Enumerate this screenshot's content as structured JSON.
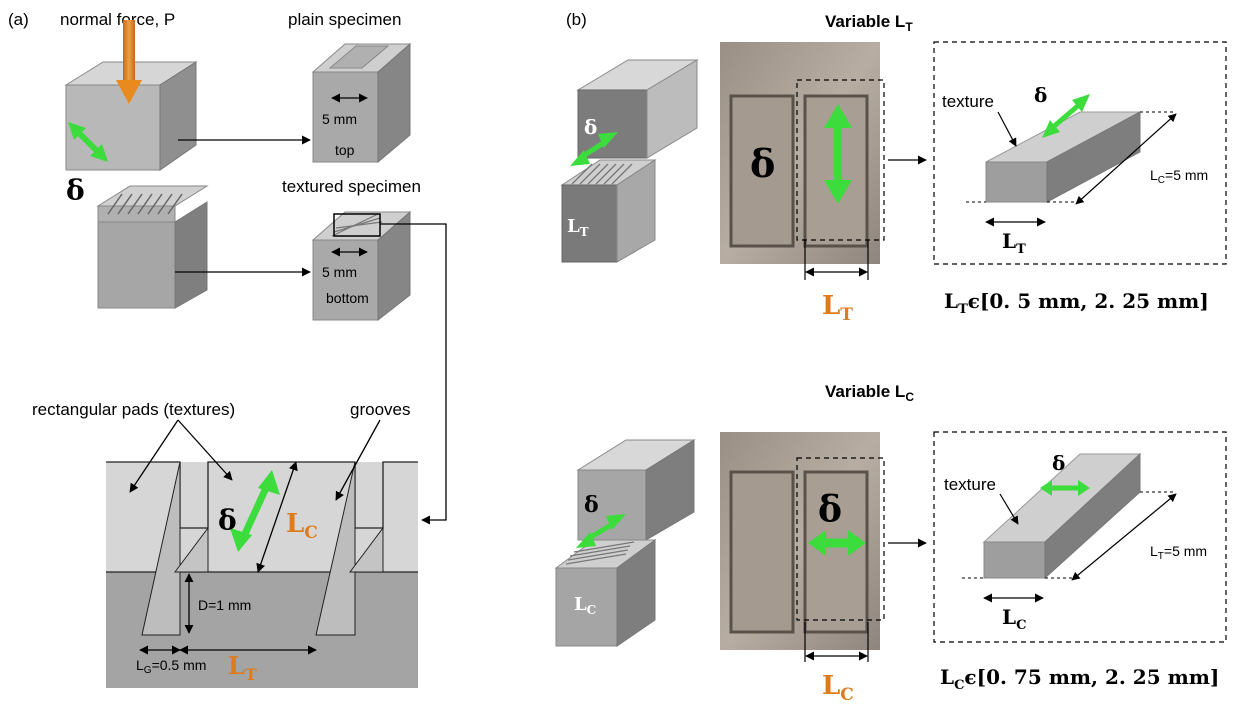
{
  "panel_a": {
    "tag": "(a)",
    "normal_force": "normal force, P",
    "plain_specimen": "plain specimen",
    "textured_specimen": "textured specimen",
    "plain_dim": "5 mm",
    "plain_face": "top",
    "textured_dim": "5 mm",
    "textured_face": "bottom",
    "delta": "δ",
    "rect_pads": "rectangular pads (textures)",
    "grooves": "grooves",
    "delta_detail": "δ",
    "lc_label": "L",
    "lc_sub": "C",
    "depth": "D=1 mm",
    "lg_label": "L",
    "lg_sub": "G",
    "lg_value": "=0.5 mm",
    "lt_label": "L",
    "lt_sub": "T"
  },
  "panel_b": {
    "tag": "(b)",
    "top": {
      "title": "Variable L",
      "title_sub": "T",
      "block_delta": "δ",
      "block_label": "L",
      "block_sub": "T",
      "photo_delta": "δ",
      "photo_dim": "L",
      "photo_dim_sub": "T",
      "texture_label": "texture",
      "box_delta": "δ",
      "box_length": "L",
      "box_length_sub": "C",
      "box_length_value": "=5 mm",
      "box_width": "L",
      "box_width_sub": "T",
      "range_var": "L",
      "range_var_sub": "T",
      "range_text": "ϵ[0. 5 mm, 2. 25 mm]"
    },
    "bottom": {
      "title": "Variable L",
      "title_sub": "C",
      "block_delta": "δ",
      "block_label": "L",
      "block_sub": "C",
      "photo_delta": "δ",
      "photo_dim": "L",
      "photo_dim_sub": "C",
      "texture_label": "texture",
      "box_delta": "δ",
      "box_length": "L",
      "box_length_sub": "T",
      "box_length_value": "=5 mm",
      "box_width": "L",
      "box_width_sub": "C",
      "range_var": "L",
      "range_var_sub": "C",
      "range_text": "ϵ[0. 75 mm, 2. 25 mm]"
    }
  },
  "colors": {
    "arrow_green": "#3ddc3d",
    "force_orange": "#e88a1e",
    "accent_text": "#e07b1c",
    "block_light": "#c9c9c9",
    "block_mid": "#a8a8a8",
    "block_dark": "#7e7e7e"
  }
}
